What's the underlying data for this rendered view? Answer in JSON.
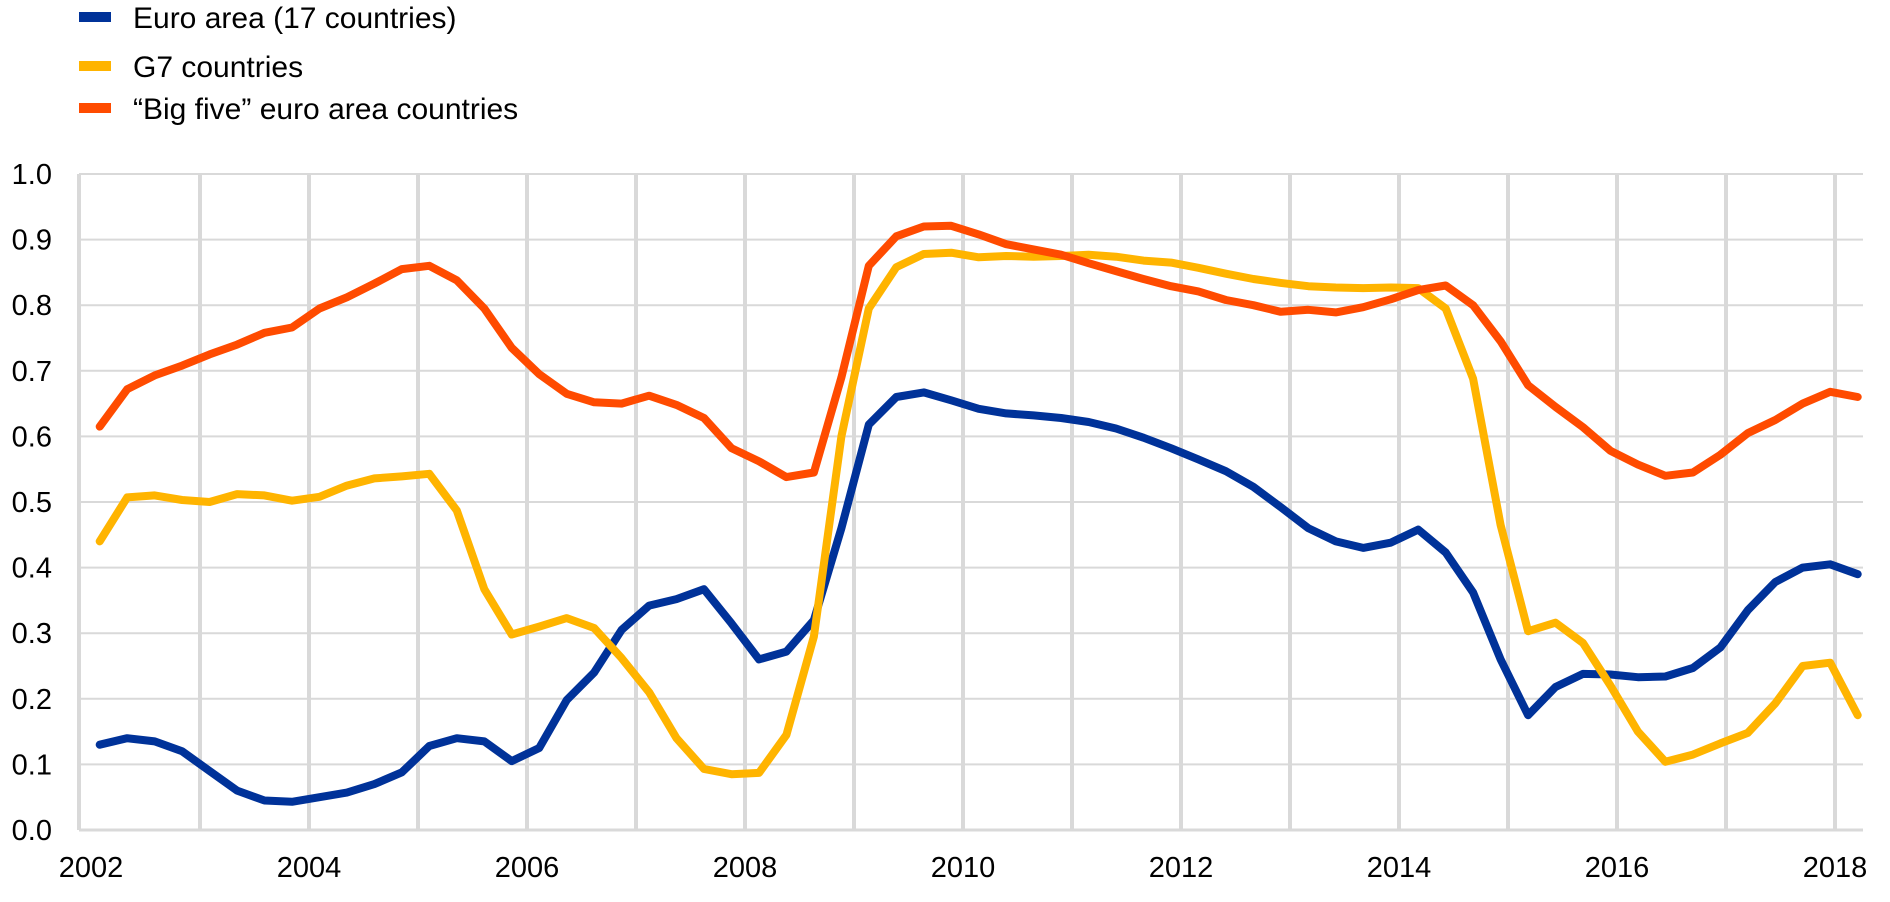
{
  "chart_data": {
    "type": "line",
    "title": "",
    "xlabel": "",
    "ylabel": "",
    "ylim": [
      0,
      1.0
    ],
    "xlim": [
      2002,
      2018.25
    ],
    "yticks": [
      "0.0",
      "0.1",
      "0.2",
      "0.3",
      "0.4",
      "0.5",
      "0.6",
      "0.7",
      "0.8",
      "0.9",
      "1.0"
    ],
    "xticks": [
      "2002",
      "2004",
      "2006",
      "2008",
      "2010",
      "2012",
      "2014",
      "2016",
      "2018"
    ],
    "grid": true,
    "legend_position": "top-left",
    "x_start": 2002.08,
    "x_step": 0.252,
    "series": [
      {
        "name": "Euro area (17 countries)",
        "color": "#003299",
        "values": [
          0.13,
          0.14,
          0.135,
          0.12,
          0.09,
          0.06,
          0.045,
          0.043,
          0.05,
          0.057,
          0.07,
          0.088,
          0.128,
          0.14,
          0.135,
          0.105,
          0.125,
          0.198,
          0.24,
          0.305,
          0.342,
          0.352,
          0.367,
          0.315,
          0.26,
          0.272,
          0.32,
          0.46,
          0.618,
          0.66,
          0.667,
          0.655,
          0.642,
          0.635,
          0.632,
          0.628,
          0.622,
          0.612,
          0.598,
          0.582,
          0.565,
          0.547,
          0.523,
          0.492,
          0.46,
          0.44,
          0.43,
          0.438,
          0.458,
          0.423,
          0.362,
          0.26,
          0.175,
          0.218,
          0.238,
          0.237,
          0.233,
          0.234,
          0.247,
          0.278,
          0.335,
          0.378,
          0.4,
          0.405,
          0.39
        ]
      },
      {
        "name": "G7 countries",
        "color": "#FFB400",
        "values": [
          0.44,
          0.507,
          0.51,
          0.503,
          0.5,
          0.512,
          0.51,
          0.502,
          0.508,
          0.525,
          0.536,
          0.539,
          0.543,
          0.487,
          0.367,
          0.298,
          0.31,
          0.323,
          0.308,
          0.262,
          0.21,
          0.14,
          0.093,
          0.085,
          0.087,
          0.145,
          0.295,
          0.6,
          0.795,
          0.858,
          0.878,
          0.88,
          0.873,
          0.875,
          0.874,
          0.875,
          0.877,
          0.874,
          0.868,
          0.865,
          0.857,
          0.848,
          0.84,
          0.834,
          0.829,
          0.827,
          0.826,
          0.827,
          0.826,
          0.795,
          0.688,
          0.465,
          0.303,
          0.316,
          0.285,
          0.22,
          0.15,
          0.104,
          0.115,
          0.132,
          0.148,
          0.193,
          0.25,
          0.255,
          0.175
        ]
      },
      {
        "name": "“Big five” euro area countries",
        "color": "#FF4B00",
        "values": [
          0.615,
          0.672,
          0.693,
          0.708,
          0.725,
          0.74,
          0.758,
          0.766,
          0.795,
          0.812,
          0.833,
          0.855,
          0.86,
          0.838,
          0.795,
          0.735,
          0.695,
          0.665,
          0.652,
          0.65,
          0.662,
          0.648,
          0.628,
          0.582,
          0.562,
          0.538,
          0.545,
          0.69,
          0.86,
          0.905,
          0.92,
          0.921,
          0.908,
          0.893,
          0.885,
          0.877,
          0.864,
          0.852,
          0.84,
          0.829,
          0.821,
          0.808,
          0.8,
          0.79,
          0.793,
          0.789,
          0.797,
          0.809,
          0.823,
          0.83,
          0.8,
          0.745,
          0.678,
          0.645,
          0.614,
          0.578,
          0.557,
          0.54,
          0.545,
          0.572,
          0.605,
          0.625,
          0.65,
          0.668,
          0.66
        ]
      }
    ]
  }
}
